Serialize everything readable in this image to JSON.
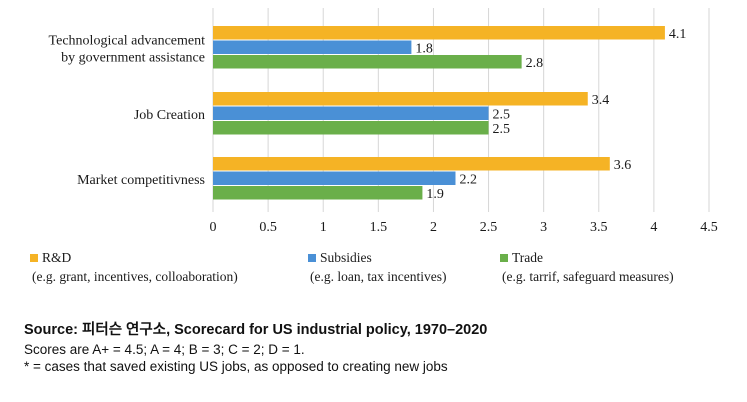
{
  "chart_data": {
    "type": "bar",
    "orientation": "horizontal",
    "categories": [
      [
        "Technological advancement",
        "by government assistance"
      ],
      [
        "Job Creation"
      ],
      [
        "Market competitivness"
      ]
    ],
    "series": [
      {
        "name": "R&D",
        "sublabel": "(e.g. grant, incentives, colloaboration)",
        "color": "#f5b325",
        "values": [
          4.1,
          3.4,
          3.6
        ]
      },
      {
        "name": "Subsidies",
        "sublabel": "(e.g. loan, tax incentives)",
        "color": "#4a90d6",
        "values": [
          1.8,
          2.5,
          2.2
        ]
      },
      {
        "name": "Trade",
        "sublabel": "(e.g. tarrif, safeguard measures)",
        "color": "#6aaf4a",
        "values": [
          2.8,
          2.5,
          1.9
        ]
      }
    ],
    "xlim": [
      0,
      4.5
    ],
    "xticks": [
      "0",
      "0.5",
      "1",
      "1.5",
      "2",
      "2.5",
      "3",
      "3.5",
      "4",
      "4.5"
    ],
    "grid": true,
    "legend": "bottom",
    "title": "",
    "xlabel": "",
    "ylabel": ""
  },
  "notes": {
    "source": "Source: 피터슨 연구소, Scorecard for US industrial policy, 1970–2020",
    "scale": "Scores are A+ = 4.5; A = 4; B = 3; C = 2; D = 1.",
    "footnote": "* = cases that saved existing US jobs, as opposed to creating new jobs"
  }
}
